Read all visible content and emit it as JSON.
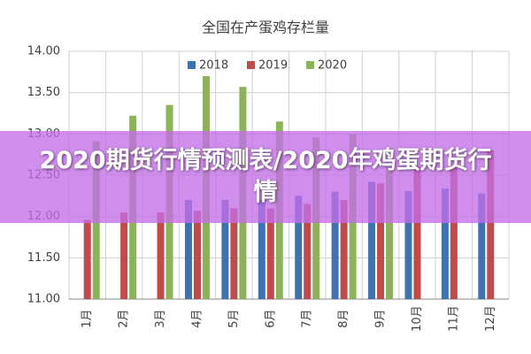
{
  "chart_data": {
    "type": "bar",
    "title": "全国在产蛋鸡存栏量",
    "categories": [
      "1月",
      "2月",
      "3月",
      "4月",
      "5月",
      "6月",
      "7月",
      "8月",
      "9月",
      "10月",
      "11月",
      "12月"
    ],
    "series": [
      {
        "name": "2018",
        "color": "#3e72b0",
        "values": [
          null,
          null,
          null,
          12.2,
          12.2,
          12.2,
          12.25,
          12.3,
          12.42,
          12.31,
          12.34,
          12.28
        ]
      },
      {
        "name": "2019",
        "color": "#bf4b4b",
        "values": [
          11.96,
          12.05,
          12.05,
          12.07,
          12.1,
          12.1,
          12.15,
          12.2,
          12.4,
          12.6,
          12.6,
          12.8
        ]
      },
      {
        "name": "2020",
        "color": "#8cb25a",
        "values": [
          12.91,
          13.22,
          13.35,
          13.7,
          13.57,
          13.15,
          12.96,
          13.0,
          12.6,
          null,
          null,
          null
        ]
      }
    ],
    "ylim": [
      11,
      14
    ],
    "yticks": [
      {
        "value": 11,
        "label": "11.00"
      },
      {
        "value": 11.5,
        "label": "11.50"
      },
      {
        "value": 12,
        "label": "12.00"
      },
      {
        "value": 12.5,
        "label": "12.50"
      },
      {
        "value": 13,
        "label": "13.00"
      },
      {
        "value": 13.5,
        "label": "13.50"
      },
      {
        "value": 14,
        "label": "14.00"
      }
    ],
    "grid": true,
    "legend": "top"
  },
  "overlay": {
    "banner": "2020期货行情预测表/2020年鸡蛋期货行情"
  }
}
